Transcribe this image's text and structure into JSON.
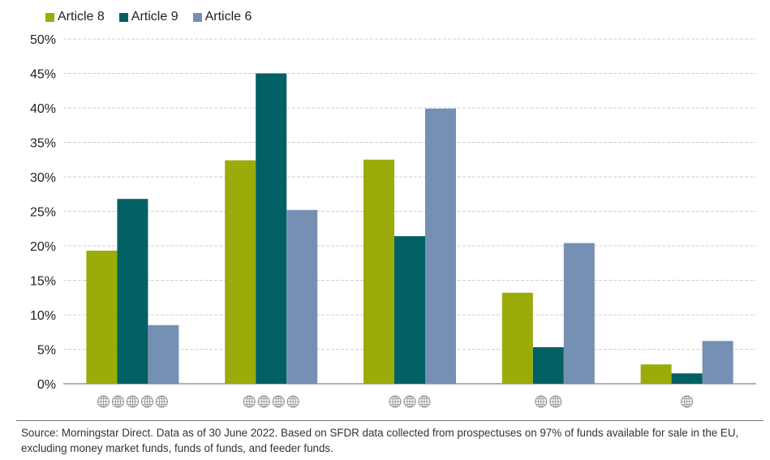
{
  "chart_data": {
    "type": "bar",
    "title": "",
    "xlabel": "",
    "ylabel": "",
    "categories": [
      "5 globes",
      "4 globes",
      "3 globes",
      "2 globes",
      "1 globe"
    ],
    "globe_counts": [
      5,
      4,
      3,
      2,
      1
    ],
    "series": [
      {
        "name": "Article 8",
        "color": "#9aab0a",
        "values": [
          19.3,
          32.4,
          32.5,
          13.2,
          2.8
        ]
      },
      {
        "name": "Article 9",
        "color": "#006064",
        "values": [
          26.8,
          45.0,
          21.4,
          5.3,
          1.5
        ]
      },
      {
        "name": "Article 6",
        "color": "#7690b4",
        "values": [
          8.5,
          25.2,
          39.9,
          20.4,
          6.2
        ]
      }
    ],
    "ylim": [
      0,
      50
    ],
    "yticks": [
      "0%",
      "5%",
      "10%",
      "15%",
      "20%",
      "25%",
      "30%",
      "35%",
      "40%",
      "45%",
      "50%"
    ],
    "grid": true,
    "legend": "top-left"
  },
  "source": "Source: Morningstar Direct. Data as of 30 June 2022. Based on SFDR data collected from prospectuses on 97% of funds available for sale in the EU, excluding money market funds, funds of funds, and feeder funds."
}
